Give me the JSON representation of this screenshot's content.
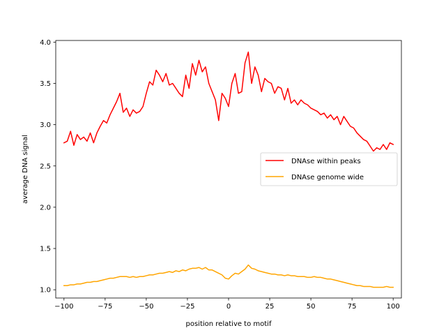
{
  "chart_data": {
    "type": "line",
    "title": "",
    "xlabel": "position relative to motif",
    "ylabel": "average DNA signal",
    "xlim": [
      -105,
      105
    ],
    "ylim": [
      0.9,
      4.02
    ],
    "xticks": [
      -100,
      -75,
      -50,
      -25,
      0,
      25,
      50,
      75,
      100
    ],
    "xtick_labels": [
      "−100",
      "−75",
      "−50",
      "−25",
      "0",
      "25",
      "50",
      "75",
      "100"
    ],
    "yticks": [
      1.0,
      1.5,
      2.0,
      2.5,
      3.0,
      3.5,
      4.0
    ],
    "ytick_labels": [
      "1.0",
      "1.5",
      "2.0",
      "2.5",
      "3.0",
      "3.5",
      "4.0"
    ],
    "legend_position": "center-right",
    "series": [
      {
        "name": "DNAse within peaks",
        "color": "#ff0000",
        "x": [
          -100,
          -98,
          -96,
          -94,
          -92,
          -90,
          -88,
          -86,
          -84,
          -82,
          -80,
          -78,
          -76,
          -74,
          -72,
          -70,
          -68,
          -66,
          -64,
          -62,
          -60,
          -58,
          -56,
          -54,
          -52,
          -50,
          -48,
          -46,
          -44,
          -42,
          -40,
          -38,
          -36,
          -34,
          -32,
          -30,
          -28,
          -26,
          -24,
          -22,
          -20,
          -18,
          -16,
          -14,
          -12,
          -10,
          -8,
          -6,
          -4,
          -2,
          0,
          2,
          4,
          6,
          8,
          10,
          12,
          14,
          16,
          18,
          20,
          22,
          24,
          26,
          28,
          30,
          32,
          34,
          36,
          38,
          40,
          42,
          44,
          46,
          48,
          50,
          52,
          54,
          56,
          58,
          60,
          62,
          64,
          66,
          68,
          70,
          72,
          74,
          76,
          78,
          80,
          82,
          84,
          86,
          88,
          90,
          92,
          94,
          96,
          98,
          100
        ],
        "values": [
          2.78,
          2.8,
          2.92,
          2.75,
          2.88,
          2.82,
          2.85,
          2.8,
          2.9,
          2.78,
          2.9,
          2.98,
          3.05,
          3.02,
          3.12,
          3.2,
          3.28,
          3.38,
          3.15,
          3.2,
          3.1,
          3.18,
          3.14,
          3.16,
          3.22,
          3.38,
          3.52,
          3.48,
          3.66,
          3.6,
          3.52,
          3.62,
          3.48,
          3.5,
          3.44,
          3.38,
          3.34,
          3.6,
          3.44,
          3.74,
          3.6,
          3.78,
          3.64,
          3.7,
          3.5,
          3.4,
          3.3,
          3.05,
          3.38,
          3.32,
          3.22,
          3.5,
          3.62,
          3.38,
          3.4,
          3.75,
          3.88,
          3.5,
          3.7,
          3.6,
          3.4,
          3.56,
          3.52,
          3.5,
          3.38,
          3.46,
          3.44,
          3.3,
          3.44,
          3.26,
          3.3,
          3.24,
          3.3,
          3.26,
          3.24,
          3.2,
          3.18,
          3.16,
          3.12,
          3.14,
          3.08,
          3.12,
          3.06,
          3.1,
          3.0,
          3.1,
          3.04,
          2.98,
          2.96,
          2.9,
          2.86,
          2.82,
          2.8,
          2.74,
          2.68,
          2.72,
          2.7,
          2.76,
          2.7,
          2.78,
          2.76
        ]
      },
      {
        "name": "DNAse genome wide",
        "color": "#ffa500",
        "x": [
          -100,
          -98,
          -96,
          -94,
          -92,
          -90,
          -88,
          -86,
          -84,
          -82,
          -80,
          -78,
          -76,
          -74,
          -72,
          -70,
          -68,
          -66,
          -64,
          -62,
          -60,
          -58,
          -56,
          -54,
          -52,
          -50,
          -48,
          -46,
          -44,
          -42,
          -40,
          -38,
          -36,
          -34,
          -32,
          -30,
          -28,
          -26,
          -24,
          -22,
          -20,
          -18,
          -16,
          -14,
          -12,
          -10,
          -8,
          -6,
          -4,
          -2,
          0,
          2,
          4,
          6,
          8,
          10,
          12,
          14,
          16,
          18,
          20,
          22,
          24,
          26,
          28,
          30,
          32,
          34,
          36,
          38,
          40,
          42,
          44,
          46,
          48,
          50,
          52,
          54,
          56,
          58,
          60,
          62,
          64,
          66,
          68,
          70,
          72,
          74,
          76,
          78,
          80,
          82,
          84,
          86,
          88,
          90,
          92,
          94,
          96,
          98,
          100
        ],
        "values": [
          1.05,
          1.05,
          1.06,
          1.06,
          1.07,
          1.07,
          1.08,
          1.09,
          1.09,
          1.1,
          1.1,
          1.11,
          1.12,
          1.13,
          1.14,
          1.14,
          1.15,
          1.16,
          1.16,
          1.16,
          1.15,
          1.16,
          1.15,
          1.16,
          1.16,
          1.17,
          1.18,
          1.18,
          1.19,
          1.2,
          1.2,
          1.21,
          1.22,
          1.21,
          1.23,
          1.22,
          1.24,
          1.23,
          1.25,
          1.26,
          1.26,
          1.27,
          1.25,
          1.27,
          1.24,
          1.24,
          1.22,
          1.2,
          1.18,
          1.14,
          1.13,
          1.17,
          1.2,
          1.19,
          1.22,
          1.25,
          1.3,
          1.26,
          1.25,
          1.23,
          1.22,
          1.21,
          1.2,
          1.19,
          1.19,
          1.18,
          1.18,
          1.17,
          1.18,
          1.17,
          1.17,
          1.16,
          1.16,
          1.16,
          1.15,
          1.15,
          1.16,
          1.15,
          1.15,
          1.14,
          1.13,
          1.13,
          1.12,
          1.11,
          1.1,
          1.09,
          1.08,
          1.07,
          1.06,
          1.05,
          1.05,
          1.04,
          1.04,
          1.04,
          1.03,
          1.03,
          1.03,
          1.03,
          1.04,
          1.03,
          1.03
        ]
      }
    ]
  }
}
